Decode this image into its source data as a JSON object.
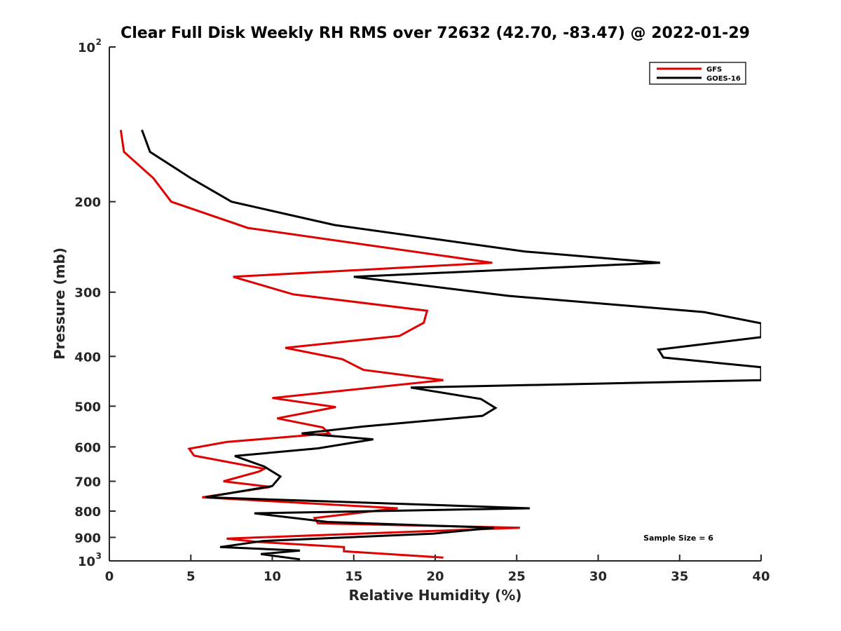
{
  "chart_data": {
    "type": "line",
    "title": "Clear Full Disk Weekly RH RMS over 72632 (42.70, -83.47) @ 2022-01-29",
    "xlabel": "Relative Humidity (%)",
    "ylabel": "Pressure (mb)",
    "xlim": [
      0,
      40
    ],
    "ylim": [
      100,
      1000
    ],
    "y_scale": "log",
    "y_reversed": true,
    "grid": false,
    "legend_position": "top-right",
    "x_ticks": [
      "0",
      "5",
      "10",
      "15",
      "20",
      "25",
      "30",
      "35",
      "40"
    ],
    "y_ticks": [
      {
        "value": 100,
        "base": "10",
        "exp": "2"
      },
      {
        "value": 200,
        "label": "200"
      },
      {
        "value": 300,
        "label": "300"
      },
      {
        "value": 400,
        "label": "400"
      },
      {
        "value": 500,
        "label": "500"
      },
      {
        "value": 600,
        "label": "600"
      },
      {
        "value": 700,
        "label": "700"
      },
      {
        "value": 800,
        "label": "800"
      },
      {
        "value": 900,
        "label": "900"
      },
      {
        "value": 1000,
        "base": "10",
        "exp": "3"
      }
    ],
    "annotation": "Sample Size = 6",
    "series": [
      {
        "name": "GFS",
        "color": "#e00000",
        "points": [
          [
            0.7,
            145
          ],
          [
            0.9,
            160
          ],
          [
            2.7,
            180
          ],
          [
            3.8,
            200
          ],
          [
            8.5,
            225
          ],
          [
            23.5,
            263
          ],
          [
            7.6,
            280
          ],
          [
            11.3,
            303
          ],
          [
            19.5,
            326
          ],
          [
            19.3,
            344
          ],
          [
            17.8,
            365
          ],
          [
            10.8,
            385
          ],
          [
            14.3,
            405
          ],
          [
            15.6,
            425
          ],
          [
            20.5,
            445
          ],
          [
            10.0,
            482
          ],
          [
            13.9,
            502
          ],
          [
            10.3,
            528
          ],
          [
            13.1,
            550
          ],
          [
            13.5,
            565
          ],
          [
            7.2,
            587
          ],
          [
            4.9,
            605
          ],
          [
            5.2,
            624
          ],
          [
            9.5,
            662
          ],
          [
            9.2,
            670
          ],
          [
            7.0,
            700
          ],
          [
            9.9,
            718
          ],
          [
            5.7,
            752
          ],
          [
            17.7,
            790
          ],
          [
            12.6,
            825
          ],
          [
            12.8,
            845
          ],
          [
            25.2,
            862
          ],
          [
            7.2,
            905
          ],
          [
            9.0,
            918
          ],
          [
            14.4,
            940
          ],
          [
            14.4,
            958
          ],
          [
            20.5,
            985
          ]
        ]
      },
      {
        "name": "GOES-16",
        "color": "#000000",
        "points": [
          [
            2.0,
            145
          ],
          [
            2.5,
            160
          ],
          [
            5.0,
            180
          ],
          [
            7.5,
            200
          ],
          [
            13.8,
            222
          ],
          [
            25.5,
            250
          ],
          [
            33.8,
            263
          ],
          [
            15.0,
            280
          ],
          [
            24.5,
            305
          ],
          [
            36.5,
            328
          ],
          [
            40.0,
            345
          ],
          [
            40.0,
            367
          ],
          [
            33.7,
            388
          ],
          [
            34.0,
            402
          ],
          [
            40.0,
            420
          ],
          [
            40.0,
            445
          ],
          [
            18.5,
            460
          ],
          [
            22.8,
            484
          ],
          [
            23.7,
            504
          ],
          [
            22.9,
            522
          ],
          [
            15.5,
            548
          ],
          [
            11.8,
            565
          ],
          [
            16.2,
            580
          ],
          [
            12.8,
            604
          ],
          [
            7.7,
            625
          ],
          [
            9.5,
            655
          ],
          [
            10.5,
            685
          ],
          [
            10.0,
            715
          ],
          [
            5.9,
            752
          ],
          [
            19.8,
            778
          ],
          [
            25.8,
            790
          ],
          [
            8.9,
            808
          ],
          [
            13.4,
            840
          ],
          [
            23.6,
            862
          ],
          [
            19.9,
            885
          ],
          [
            9.4,
            915
          ],
          [
            6.8,
            940
          ],
          [
            11.7,
            955
          ],
          [
            9.3,
            970
          ],
          [
            11.7,
            993
          ]
        ]
      }
    ]
  }
}
